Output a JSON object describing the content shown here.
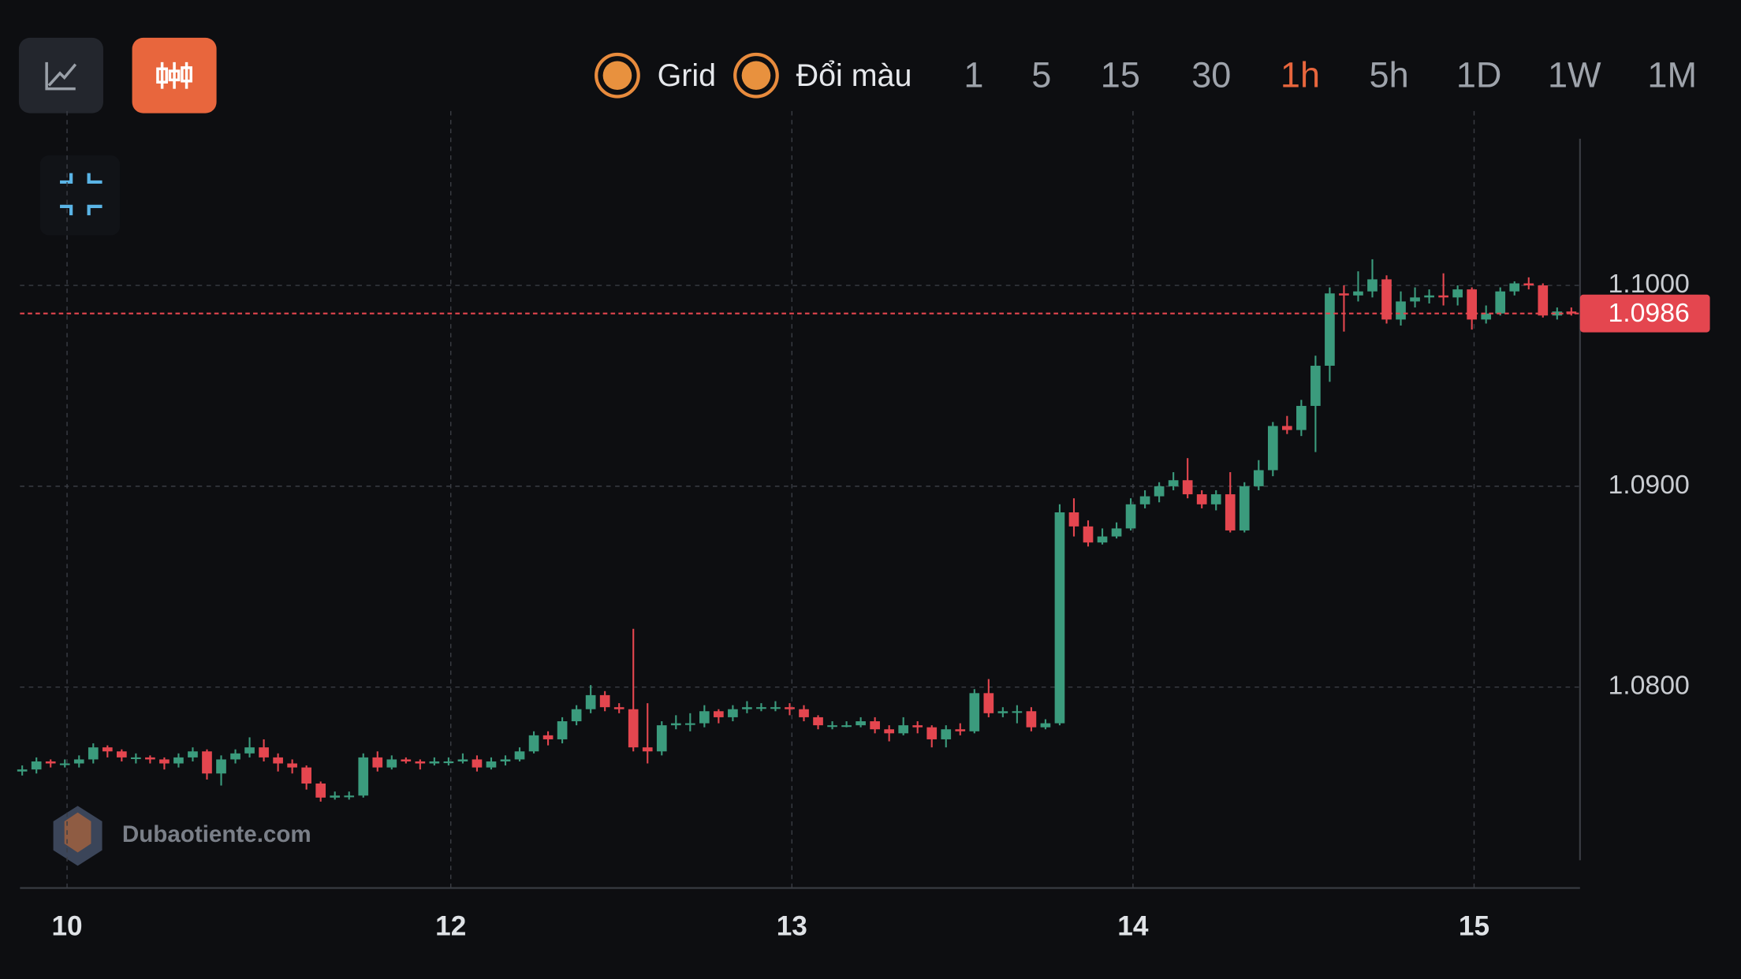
{
  "toolbar": {
    "toggles": [
      "Grid",
      "Đổi màu"
    ],
    "timeframes": [
      "1",
      "5",
      "15",
      "30",
      "1h",
      "5h",
      "1D",
      "1W",
      "1M"
    ],
    "active_timeframe": "1h"
  },
  "watermark": "Dubaotiente.com",
  "chart_data": {
    "type": "candlestick",
    "up_color": "#3b9b7d",
    "down_color": "#e4464f",
    "grid": true,
    "ylim": [
      1.07,
      1.1073
    ],
    "yticks": [
      {
        "value": 1.08,
        "label": "1.0800"
      },
      {
        "value": 1.09,
        "label": "1.0900"
      },
      {
        "value": 1.1,
        "label": "1.1000"
      }
    ],
    "xticks": [
      {
        "value": 3,
        "label": "10"
      },
      {
        "value": 30,
        "label": "12"
      },
      {
        "value": 54,
        "label": "13"
      },
      {
        "value": 78,
        "label": "14"
      },
      {
        "value": 102,
        "label": "15"
      }
    ],
    "current_price": {
      "value": 1.0986,
      "label": "1.0986"
    },
    "candles": [
      [
        1.0758,
        1.0761,
        1.0756,
        1.0759
      ],
      [
        1.0759,
        1.0765,
        1.0757,
        1.0763
      ],
      [
        1.0763,
        1.0764,
        1.076,
        1.0762
      ],
      [
        1.0762,
        1.0764,
        1.076,
        1.0762
      ],
      [
        1.0762,
        1.0766,
        1.076,
        1.0764
      ],
      [
        1.0764,
        1.0772,
        1.0762,
        1.077
      ],
      [
        1.077,
        1.0771,
        1.0765,
        1.0768
      ],
      [
        1.0768,
        1.0769,
        1.0763,
        1.0765
      ],
      [
        1.0765,
        1.0767,
        1.0762,
        1.0765
      ],
      [
        1.0765,
        1.0766,
        1.0762,
        1.0764
      ],
      [
        1.0764,
        1.0765,
        1.0759,
        1.0762
      ],
      [
        1.0762,
        1.0767,
        1.076,
        1.0765
      ],
      [
        1.0765,
        1.077,
        1.0763,
        1.0768
      ],
      [
        1.0768,
        1.0769,
        1.0754,
        1.0757
      ],
      [
        1.0757,
        1.0766,
        1.0751,
        1.0764
      ],
      [
        1.0764,
        1.0769,
        1.0762,
        1.0767
      ],
      [
        1.0767,
        1.0775,
        1.0765,
        1.077
      ],
      [
        1.077,
        1.0774,
        1.0763,
        1.0765
      ],
      [
        1.0765,
        1.0767,
        1.0758,
        1.0762
      ],
      [
        1.0762,
        1.0764,
        1.0757,
        1.076
      ],
      [
        1.076,
        1.0761,
        1.0749,
        1.0752
      ],
      [
        1.0752,
        1.0753,
        1.0743,
        1.0745
      ],
      [
        1.0745,
        1.0748,
        1.0744,
        1.0746
      ],
      [
        1.0746,
        1.0748,
        1.0744,
        1.0746
      ],
      [
        1.0746,
        1.0767,
        1.0745,
        1.0765
      ],
      [
        1.0765,
        1.0768,
        1.0758,
        1.076
      ],
      [
        1.076,
        1.0766,
        1.0759,
        1.0764
      ],
      [
        1.0764,
        1.0765,
        1.0762,
        1.0763
      ],
      [
        1.0763,
        1.0764,
        1.0759,
        1.0762
      ],
      [
        1.0762,
        1.0765,
        1.0761,
        1.0763
      ],
      [
        1.0763,
        1.0765,
        1.0761,
        1.0763
      ],
      [
        1.0763,
        1.0767,
        1.0762,
        1.0764
      ],
      [
        1.0764,
        1.0766,
        1.0758,
        1.076
      ],
      [
        1.076,
        1.0765,
        1.0759,
        1.0763
      ],
      [
        1.0763,
        1.0766,
        1.0761,
        1.0764
      ],
      [
        1.0764,
        1.077,
        1.0763,
        1.0768
      ],
      [
        1.0768,
        1.0778,
        1.0767,
        1.0776
      ],
      [
        1.0776,
        1.0778,
        1.0771,
        1.0774
      ],
      [
        1.0774,
        1.0785,
        1.0772,
        1.0783
      ],
      [
        1.0783,
        1.0791,
        1.0781,
        1.0789
      ],
      [
        1.0789,
        1.0801,
        1.0787,
        1.0796
      ],
      [
        1.0796,
        1.0798,
        1.0788,
        1.079
      ],
      [
        1.079,
        1.0792,
        1.0787,
        1.0789
      ],
      [
        1.0789,
        1.0829,
        1.0768,
        1.077
      ],
      [
        1.077,
        1.0792,
        1.0762,
        1.0768
      ],
      [
        1.0768,
        1.0783,
        1.0766,
        1.0781
      ],
      [
        1.0781,
        1.0786,
        1.0779,
        1.0782
      ],
      [
        1.0782,
        1.0787,
        1.0778,
        1.0782
      ],
      [
        1.0782,
        1.0791,
        1.078,
        1.0788
      ],
      [
        1.0788,
        1.0789,
        1.0782,
        1.0785
      ],
      [
        1.0785,
        1.0791,
        1.0783,
        1.0789
      ],
      [
        1.0789,
        1.0793,
        1.0787,
        1.079
      ],
      [
        1.079,
        1.0792,
        1.0788,
        1.079
      ],
      [
        1.079,
        1.0793,
        1.0788,
        1.079
      ],
      [
        1.079,
        1.0792,
        1.0786,
        1.0789
      ],
      [
        1.0789,
        1.0791,
        1.0783,
        1.0785
      ],
      [
        1.0785,
        1.0786,
        1.0779,
        1.0781
      ],
      [
        1.0781,
        1.0783,
        1.0779,
        1.0781
      ],
      [
        1.0781,
        1.0783,
        1.078,
        1.0781
      ],
      [
        1.0781,
        1.0785,
        1.078,
        1.0783
      ],
      [
        1.0783,
        1.0785,
        1.0777,
        1.0779
      ],
      [
        1.0779,
        1.0781,
        1.0773,
        1.0777
      ],
      [
        1.0777,
        1.0785,
        1.0776,
        1.0781
      ],
      [
        1.0781,
        1.0783,
        1.0777,
        1.078
      ],
      [
        1.078,
        1.0781,
        1.077,
        1.0774
      ],
      [
        1.0774,
        1.0781,
        1.077,
        1.0779
      ],
      [
        1.0779,
        1.0782,
        1.0776,
        1.0778
      ],
      [
        1.0778,
        1.0799,
        1.0777,
        1.0797
      ],
      [
        1.0797,
        1.0804,
        1.0785,
        1.0787
      ],
      [
        1.0787,
        1.079,
        1.0785,
        1.0788
      ],
      [
        1.0788,
        1.0791,
        1.0782,
        1.0788
      ],
      [
        1.0788,
        1.079,
        1.0778,
        1.078
      ],
      [
        1.078,
        1.0784,
        1.0779,
        1.0782
      ],
      [
        1.0782,
        1.0891,
        1.0781,
        1.0887
      ],
      [
        1.0887,
        1.0894,
        1.0875,
        1.088
      ],
      [
        1.088,
        1.0883,
        1.087,
        1.0872
      ],
      [
        1.0872,
        1.0879,
        1.0871,
        1.0875
      ],
      [
        1.0875,
        1.0882,
        1.0874,
        1.0879
      ],
      [
        1.0879,
        1.0894,
        1.0878,
        1.0891
      ],
      [
        1.0891,
        1.0898,
        1.0889,
        1.0895
      ],
      [
        1.0895,
        1.0902,
        1.0892,
        1.09
      ],
      [
        1.09,
        1.0907,
        1.0898,
        1.0903
      ],
      [
        1.0903,
        1.0914,
        1.0894,
        1.0896
      ],
      [
        1.0896,
        1.0898,
        1.0889,
        1.0891
      ],
      [
        1.0891,
        1.0898,
        1.0888,
        1.0896
      ],
      [
        1.0896,
        1.0907,
        1.0877,
        1.0878
      ],
      [
        1.0878,
        1.0902,
        1.0877,
        1.09
      ],
      [
        1.09,
        1.0913,
        1.0898,
        1.0908
      ],
      [
        1.0908,
        1.0932,
        1.0905,
        1.093
      ],
      [
        1.093,
        1.0935,
        1.0926,
        1.0928
      ],
      [
        1.0928,
        1.0943,
        1.0925,
        1.094
      ],
      [
        1.094,
        1.0965,
        1.0917,
        1.096
      ],
      [
        1.096,
        1.0999,
        1.0952,
        1.0996
      ],
      [
        1.0996,
        1.1,
        1.0977,
        1.0995
      ],
      [
        1.0995,
        1.1007,
        1.0992,
        1.0997
      ],
      [
        1.0997,
        1.1013,
        1.0994,
        1.1003
      ],
      [
        1.1003,
        1.1005,
        1.0981,
        1.0983
      ],
      [
        1.0983,
        1.0997,
        1.098,
        1.0992
      ],
      [
        1.0992,
        1.0999,
        1.0989,
        1.0994
      ],
      [
        1.0994,
        1.0998,
        1.0991,
        1.0995
      ],
      [
        1.0995,
        1.1006,
        1.099,
        1.0994
      ],
      [
        1.0994,
        1.1,
        1.099,
        1.0998
      ],
      [
        1.0998,
        1.0999,
        1.0978,
        1.0983
      ],
      [
        1.0983,
        1.099,
        1.0981,
        1.0986
      ],
      [
        1.0986,
        1.0999,
        1.0985,
        1.0997
      ],
      [
        1.0997,
        1.1002,
        1.0995,
        1.1001
      ],
      [
        1.1001,
        1.1004,
        1.0998,
        1.1
      ],
      [
        1.1,
        1.1001,
        1.0984,
        1.0985
      ],
      [
        1.0985,
        1.0989,
        1.0983,
        1.0987
      ],
      [
        1.0987,
        1.0989,
        1.0985,
        1.0986
      ]
    ]
  }
}
